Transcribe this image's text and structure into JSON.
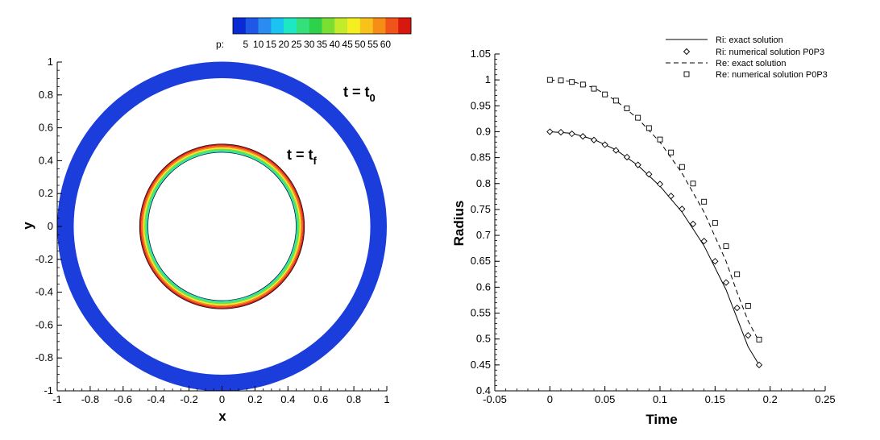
{
  "chart_data": [
    {
      "type": "heatmap",
      "xlabel": "x",
      "ylabel": "y",
      "xlim": [
        -1,
        1
      ],
      "ylim": [
        -1,
        1
      ],
      "x_ticks": [
        "-1",
        "-0.8",
        "-0.6",
        "-0.4",
        "-0.2",
        "0",
        "0.2",
        "0.4",
        "0.6",
        "0.8",
        "1"
      ],
      "y_ticks": [
        "-1",
        "-0.8",
        "-0.6",
        "-0.4",
        "-0.2",
        "0",
        "0.2",
        "0.4",
        "0.6",
        "0.8",
        "1"
      ],
      "colorbar": {
        "label": "p:",
        "levels": [
          "5",
          "10",
          "15",
          "20",
          "25",
          "30",
          "35",
          "40",
          "45",
          "50",
          "55",
          "60"
        ],
        "colors": [
          "#0a2ad6",
          "#1f57e6",
          "#2a8bf0",
          "#1bc3f0",
          "#1ee8c4",
          "#35e07a",
          "#2ed14a",
          "#7adf32",
          "#c4ea2c",
          "#f5ef21",
          "#f7c21c",
          "#f68e16",
          "#f0541a",
          "#d8170f"
        ]
      },
      "rings": [
        {
          "label": "t = t",
          "subscript": "0",
          "r_inner": 0.9,
          "r_outer": 1.0,
          "p_value": 5,
          "color": "#1b3ddc"
        },
        {
          "label": "t = t",
          "subscript": "f",
          "r_inner": 0.45,
          "r_outer": 0.5,
          "p_value_min": 25,
          "p_value_max": 60
        }
      ]
    },
    {
      "type": "line",
      "xlabel": "Time",
      "ylabel": "Radius",
      "xlim": [
        -0.05,
        0.25
      ],
      "ylim": [
        0.4,
        1.05
      ],
      "x_ticks": [
        "-0.05",
        "0",
        "0.05",
        "0.1",
        "0.15",
        "0.2",
        "0.25"
      ],
      "y_ticks": [
        "0.4",
        "0.45",
        "0.5",
        "0.55",
        "0.6",
        "0.65",
        "0.7",
        "0.75",
        "0.8",
        "0.85",
        "0.9",
        "0.95",
        "1",
        "1.05"
      ],
      "legend_position": "top-right",
      "series": [
        {
          "name": "Ri: exact solution",
          "style": "solid",
          "x": [
            0,
            0.02,
            0.04,
            0.06,
            0.08,
            0.1,
            0.12,
            0.14,
            0.16,
            0.17,
            0.18,
            0.19
          ],
          "y": [
            0.9,
            0.897,
            0.885,
            0.865,
            0.835,
            0.795,
            0.745,
            0.68,
            0.595,
            0.54,
            0.485,
            0.45
          ]
        },
        {
          "name": "Ri: numerical solution P0P3",
          "style": "diamond",
          "x": [
            0,
            0.01,
            0.02,
            0.03,
            0.04,
            0.05,
            0.06,
            0.07,
            0.08,
            0.09,
            0.1,
            0.11,
            0.12,
            0.13,
            0.14,
            0.15,
            0.16,
            0.17,
            0.18,
            0.19
          ],
          "y": [
            0.9,
            0.899,
            0.896,
            0.891,
            0.884,
            0.875,
            0.864,
            0.851,
            0.836,
            0.818,
            0.799,
            0.776,
            0.751,
            0.722,
            0.689,
            0.65,
            0.609,
            0.56,
            0.507,
            0.45
          ]
        },
        {
          "name": "Re: exact solution",
          "style": "dashed",
          "x": [
            0,
            0.02,
            0.04,
            0.06,
            0.08,
            0.1,
            0.12,
            0.14,
            0.16,
            0.17,
            0.18,
            0.19
          ],
          "y": [
            1.0,
            0.997,
            0.985,
            0.96,
            0.925,
            0.88,
            0.82,
            0.745,
            0.65,
            0.59,
            0.535,
            0.495
          ]
        },
        {
          "name": "Re: numerical solution P0P3",
          "style": "square",
          "x": [
            0,
            0.01,
            0.02,
            0.03,
            0.04,
            0.05,
            0.06,
            0.07,
            0.08,
            0.09,
            0.1,
            0.11,
            0.12,
            0.13,
            0.14,
            0.15,
            0.16,
            0.17,
            0.18,
            0.19
          ],
          "y": [
            1.0,
            0.999,
            0.996,
            0.991,
            0.983,
            0.972,
            0.96,
            0.945,
            0.927,
            0.907,
            0.885,
            0.86,
            0.832,
            0.8,
            0.765,
            0.724,
            0.679,
            0.625,
            0.564,
            0.499
          ]
        }
      ]
    }
  ]
}
